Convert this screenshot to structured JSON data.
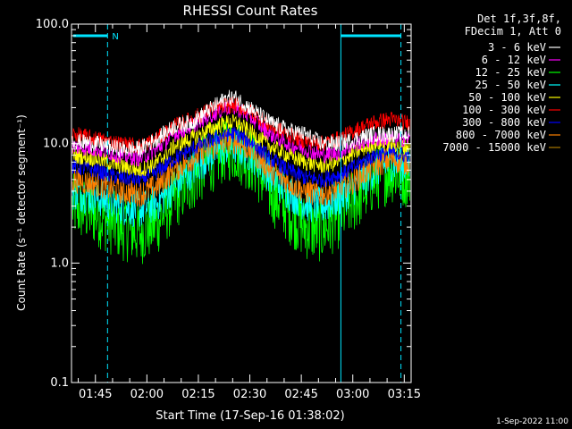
{
  "chart_data": {
    "type": "line",
    "title": "RHESSI Count Rates",
    "xlabel": "Start Time (17-Sep-16 01:38:02)",
    "ylabel": "Count Rate (s⁻¹ detector segment⁻¹)",
    "y_scale": "log",
    "ylim": [
      0.1,
      100.0
    ],
    "xlim": [
      "01:38:02",
      "03:17:00"
    ],
    "x_ticks": [
      "01:45",
      "02:00",
      "02:15",
      "02:30",
      "02:45",
      "03:00",
      "03:15"
    ],
    "y_ticks": [
      "0.1",
      "1.0",
      "10.0",
      "100.0"
    ],
    "legend_header": [
      "Det 1f,3f,8f,",
      "FDecim 1, Att 0"
    ],
    "legend_position": "outside-right",
    "x_minutes": [
      0,
      7,
      14,
      20,
      25,
      30,
      35,
      40,
      45,
      48,
      53,
      58,
      63,
      68,
      73,
      78,
      83,
      88,
      93,
      97
    ],
    "series": [
      {
        "name": "3 - 6 keV",
        "color": "#ffffff",
        "values": [
          10.5,
          10.0,
          9.0,
          9.0,
          11.0,
          14.0,
          15.0,
          19.0,
          24.0,
          24.0,
          19.0,
          15.0,
          13.0,
          12.0,
          10.0,
          10.0,
          11.0,
          12.0,
          12.0,
          12.0
        ]
      },
      {
        "name": "6 - 12 keV",
        "color": "#ff00ff",
        "values": [
          9.5,
          9.0,
          8.0,
          7.5,
          9.0,
          12.0,
          14.0,
          17.0,
          20.0,
          20.0,
          16.0,
          12.0,
          10.0,
          9.0,
          8.0,
          8.5,
          10.0,
          11.0,
          11.0,
          11.0
        ]
      },
      {
        "name": "12 - 25 keV",
        "color": "#00ff00",
        "values": [
          3.0,
          2.6,
          2.0,
          1.8,
          2.2,
          3.5,
          5.0,
          7.0,
          9.0,
          9.0,
          7.0,
          4.0,
          2.8,
          2.0,
          1.9,
          2.5,
          3.5,
          5.0,
          6.0,
          5.5
        ]
      },
      {
        "name": "25 - 50 keV",
        "color": "#00ffff",
        "values": [
          4.0,
          3.6,
          3.0,
          2.8,
          3.2,
          4.5,
          6.0,
          8.0,
          9.5,
          9.5,
          8.0,
          5.5,
          4.0,
          3.2,
          3.0,
          3.5,
          4.5,
          6.0,
          7.0,
          6.5
        ]
      },
      {
        "name": "50 - 100 keV",
        "color": "#ffff00",
        "values": [
          8.0,
          7.5,
          6.5,
          6.0,
          7.0,
          9.5,
          11.0,
          13.0,
          15.0,
          15.0,
          12.0,
          9.5,
          8.0,
          7.0,
          6.5,
          7.0,
          8.5,
          10.0,
          10.0,
          9.5
        ]
      },
      {
        "name": "100 - 300 keV",
        "color": "#ff0000",
        "values": [
          12.0,
          11.0,
          10.0,
          9.5,
          11.0,
          14.0,
          16.0,
          19.0,
          21.0,
          21.0,
          18.0,
          14.0,
          12.0,
          10.5,
          10.0,
          11.0,
          13.0,
          15.0,
          16.0,
          15.0
        ]
      },
      {
        "name": "300 - 800 keV",
        "color": "#0000ff",
        "values": [
          6.5,
          6.0,
          5.2,
          5.0,
          5.8,
          7.5,
          9.0,
          10.5,
          12.0,
          12.0,
          10.0,
          7.5,
          6.0,
          5.2,
          5.0,
          5.5,
          6.5,
          8.0,
          8.5,
          8.0
        ]
      },
      {
        "name": "800 - 7000 keV",
        "color": "#ff8000",
        "values": [
          5.0,
          4.6,
          4.0,
          3.8,
          4.4,
          6.0,
          7.5,
          9.0,
          10.5,
          10.5,
          8.5,
          6.0,
          4.8,
          4.0,
          3.8,
          4.2,
          5.0,
          6.5,
          7.5,
          7.0
        ]
      },
      {
        "name": "7000 - 15000 keV",
        "color": "#aa7700",
        "values": [
          null,
          null,
          null,
          null,
          null,
          null,
          null,
          null,
          null,
          null,
          null,
          null,
          null,
          null,
          null,
          null,
          null,
          null,
          null,
          null
        ]
      }
    ],
    "attenuator_bars": [
      {
        "label": "N",
        "x_start_min": 0.5,
        "x_end_min": 10.5
      },
      {
        "label": "",
        "x_start_min": 78.5,
        "x_end_min": 96.0
      }
    ],
    "vlines_dashed_min": [
      10.5,
      96.0
    ],
    "vlines_solid_min": [
      0.0,
      78.5
    ]
  },
  "footer_timestamp": "1-Sep-2022 11:00"
}
